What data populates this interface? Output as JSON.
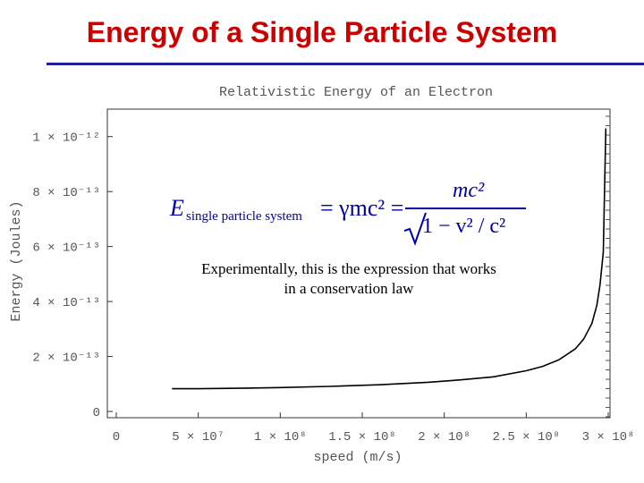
{
  "slide": {
    "title": "Energy of a Single Particle System"
  },
  "equation": {
    "lhs": "E",
    "lhs_subscript": "single particle system",
    "middle": "= γmc² =",
    "numerator": "mc²",
    "denominator": "1 − v² / c²"
  },
  "note": {
    "line1": "Experimentally, this is the expression that works",
    "line2": "in a conservation law"
  },
  "chart_data": {
    "type": "line",
    "title": "Relativistic Energy of an Electron",
    "xlabel": "speed (m/s)",
    "ylabel": "Energy (Joules)",
    "xlim": [
      0,
      300000000.0
    ],
    "ylim": [
      0,
      1.1e-12
    ],
    "x_ticks": [
      {
        "value": 0,
        "label": "0"
      },
      {
        "value": 50000000.0,
        "label": "5 × 10⁷"
      },
      {
        "value": 100000000.0,
        "label": "1 × 10⁸"
      },
      {
        "value": 150000000.0,
        "label": "1.5 × 10⁸"
      },
      {
        "value": 200000000.0,
        "label": "2 × 10⁸"
      },
      {
        "value": 250000000.0,
        "label": "2.5 × 10⁸"
      },
      {
        "value": 300000000.0,
        "label": "3 × 10⁸"
      }
    ],
    "y_ticks": [
      {
        "value": 0,
        "label": "0"
      },
      {
        "value": 2e-13,
        "label": "2 × 10⁻¹³"
      },
      {
        "value": 4e-13,
        "label": "4 × 10⁻¹³"
      },
      {
        "value": 6e-13,
        "label": "6 × 10⁻¹³"
      },
      {
        "value": 8e-13,
        "label": "8 × 10⁻¹³"
      },
      {
        "value": 1e-12,
        "label": "1 × 10⁻¹²"
      }
    ],
    "series": [
      {
        "name": "E = γmc²",
        "x": [
          34000000.0,
          50000000.0,
          80000000.0,
          100000000.0,
          130000000.0,
          160000000.0,
          190000000.0,
          210000000.0,
          230000000.0,
          250000000.0,
          260000000.0,
          270000000.0,
          280000000.0,
          285000000.0,
          290000000.0,
          293000000.0,
          295000000.0,
          297000000.0,
          298500000.0
        ],
        "y": [
          8.25e-14,
          8.28e-14,
          8.5e-14,
          8.7e-14,
          9.1e-14,
          9.7e-14,
          1.06e-13,
          1.15e-13,
          1.26e-13,
          1.48e-13,
          1.64e-13,
          1.88e-13,
          2.28e-13,
          2.63e-13,
          3.2e-13,
          3.85e-13,
          4.6e-13,
          5.8e-13,
          1.03e-12
        ]
      }
    ]
  }
}
